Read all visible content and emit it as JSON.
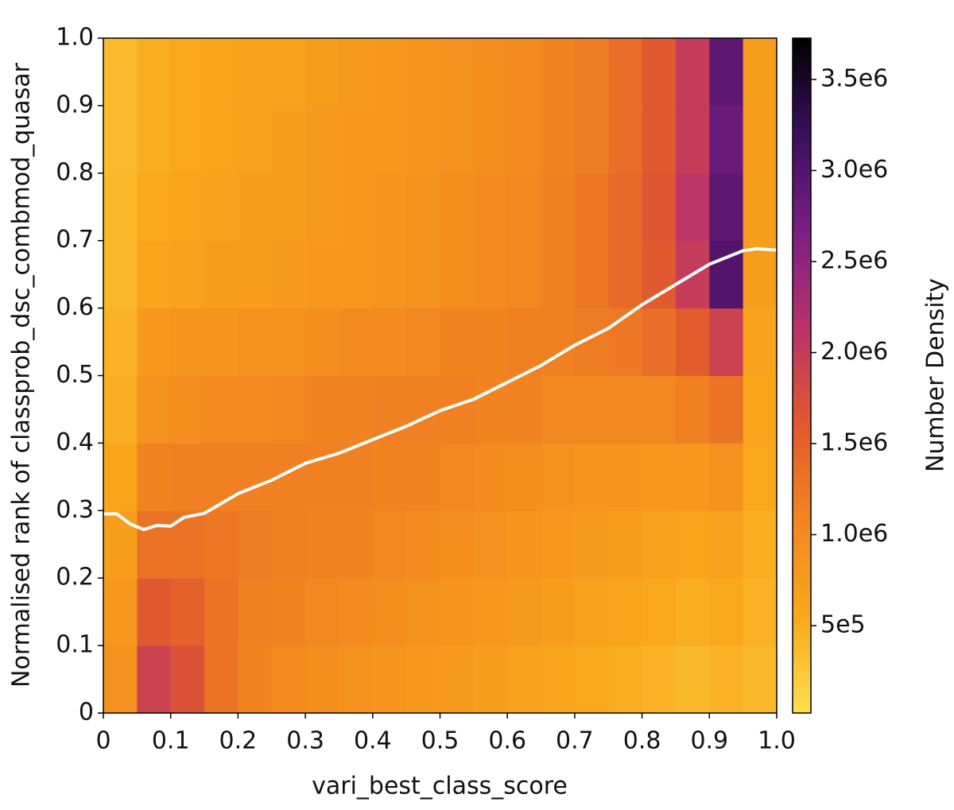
{
  "chart_data": {
    "type": "heatmap",
    "x_label": "vari_best_class_score",
    "y_label": "Normalised rank of classprob_dsc_combmod_quasar",
    "colorbar_label": "Number Density",
    "xlim": [
      0,
      1
    ],
    "ylim": [
      0,
      1
    ],
    "xticks": [
      0,
      0.1,
      0.2,
      0.3,
      0.4,
      0.5,
      0.6,
      0.7,
      0.8,
      0.9,
      {
        "value": 1,
        "label": "1.0"
      }
    ],
    "yticks": [
      0,
      0.1,
      0.2,
      0.3,
      0.4,
      0.5,
      0.6,
      0.7,
      0.8,
      0.9,
      {
        "value": 1,
        "label": "1.0"
      }
    ],
    "clim": [
      20000,
      3727000
    ],
    "cticks": [
      {
        "value": 500000,
        "label": "5e5"
      },
      {
        "value": 1000000,
        "label": "1.0e6"
      },
      {
        "value": 1500000,
        "label": "1.5e6"
      },
      {
        "value": 2000000,
        "label": "2.0e6"
      },
      {
        "value": 2500000,
        "label": "2.5e6"
      },
      {
        "value": 3000000,
        "label": "3.0e6"
      },
      {
        "value": 3500000,
        "label": "3.5e6"
      }
    ],
    "colormap": [
      "#fde050",
      "#f9a81c",
      "#f28620",
      "#e1582e",
      "#b8326a",
      "#7a1f84",
      "#3a0f5c",
      "#000004"
    ],
    "xbins": [
      0,
      0.05,
      0.1,
      0.15,
      0.2,
      0.25,
      0.3,
      0.35,
      0.4,
      0.45,
      0.5,
      0.55,
      0.6,
      0.65,
      0.7,
      0.75,
      0.8,
      0.85,
      0.9,
      0.95,
      1
    ],
    "ybins": [
      0,
      0.1,
      0.2,
      0.3,
      0.4,
      0.5,
      0.6,
      0.7,
      0.8,
      0.9,
      1
    ],
    "z": [
      [
        900000,
        1900000,
        1700000,
        1300000,
        1100000,
        1000000,
        950000,
        900000,
        850000,
        800000,
        750000,
        700000,
        650000,
        600000,
        550000,
        500000,
        450000,
        400000,
        450000,
        400000
      ],
      [
        800000,
        1600000,
        1500000,
        1300000,
        1150000,
        1100000,
        1050000,
        1000000,
        950000,
        900000,
        850000,
        800000,
        750000,
        700000,
        650000,
        600000,
        550000,
        500000,
        550000,
        450000
      ],
      [
        700000,
        1300000,
        1300000,
        1250000,
        1200000,
        1150000,
        1100000,
        1100000,
        1050000,
        1000000,
        950000,
        900000,
        850000,
        800000,
        750000,
        700000,
        650000,
        600000,
        650000,
        500000
      ],
      [
        600000,
        1100000,
        1150000,
        1150000,
        1150000,
        1150000,
        1150000,
        1150000,
        1100000,
        1100000,
        1050000,
        1000000,
        950000,
        900000,
        850000,
        850000,
        800000,
        800000,
        900000,
        550000
      ],
      [
        500000,
        900000,
        950000,
        1000000,
        1000000,
        1050000,
        1100000,
        1100000,
        1150000,
        1150000,
        1150000,
        1100000,
        1100000,
        1050000,
        1050000,
        1050000,
        1050000,
        1150000,
        1300000,
        600000
      ],
      [
        450000,
        800000,
        850000,
        850000,
        900000,
        900000,
        950000,
        1000000,
        1000000,
        1050000,
        1100000,
        1100000,
        1150000,
        1150000,
        1200000,
        1250000,
        1350000,
        1550000,
        1900000,
        650000
      ],
      [
        400000,
        600000,
        650000,
        700000,
        700000,
        750000,
        800000,
        800000,
        850000,
        900000,
        950000,
        1000000,
        1050000,
        1150000,
        1250000,
        1400000,
        1600000,
        2000000,
        3000000,
        700000
      ],
      [
        400000,
        550000,
        600000,
        650000,
        700000,
        700000,
        750000,
        800000,
        850000,
        900000,
        950000,
        1000000,
        1050000,
        1150000,
        1250000,
        1400000,
        1650000,
        2100000,
        2900000,
        700000
      ],
      [
        380000,
        500000,
        550000,
        600000,
        650000,
        700000,
        750000,
        800000,
        800000,
        850000,
        900000,
        950000,
        1000000,
        1100000,
        1200000,
        1350000,
        1600000,
        2000000,
        2800000,
        700000
      ],
      [
        380000,
        500000,
        550000,
        600000,
        650000,
        650000,
        700000,
        750000,
        800000,
        850000,
        900000,
        950000,
        1000000,
        1100000,
        1200000,
        1350000,
        1600000,
        2000000,
        2900000,
        700000
      ]
    ],
    "line": {
      "color": "#ffffff",
      "x": [
        0,
        0.02,
        0.04,
        0.06,
        0.08,
        0.1,
        0.12,
        0.15,
        0.2,
        0.25,
        0.3,
        0.35,
        0.4,
        0.45,
        0.5,
        0.55,
        0.6,
        0.65,
        0.7,
        0.75,
        0.8,
        0.85,
        0.9,
        0.95,
        0.97,
        1
      ],
      "y": [
        0.295,
        0.295,
        0.28,
        0.272,
        0.278,
        0.277,
        0.29,
        0.296,
        0.325,
        0.345,
        0.37,
        0.385,
        0.405,
        0.425,
        0.448,
        0.465,
        0.49,
        0.515,
        0.545,
        0.57,
        0.605,
        0.635,
        0.665,
        0.685,
        0.688,
        0.686
      ]
    }
  }
}
